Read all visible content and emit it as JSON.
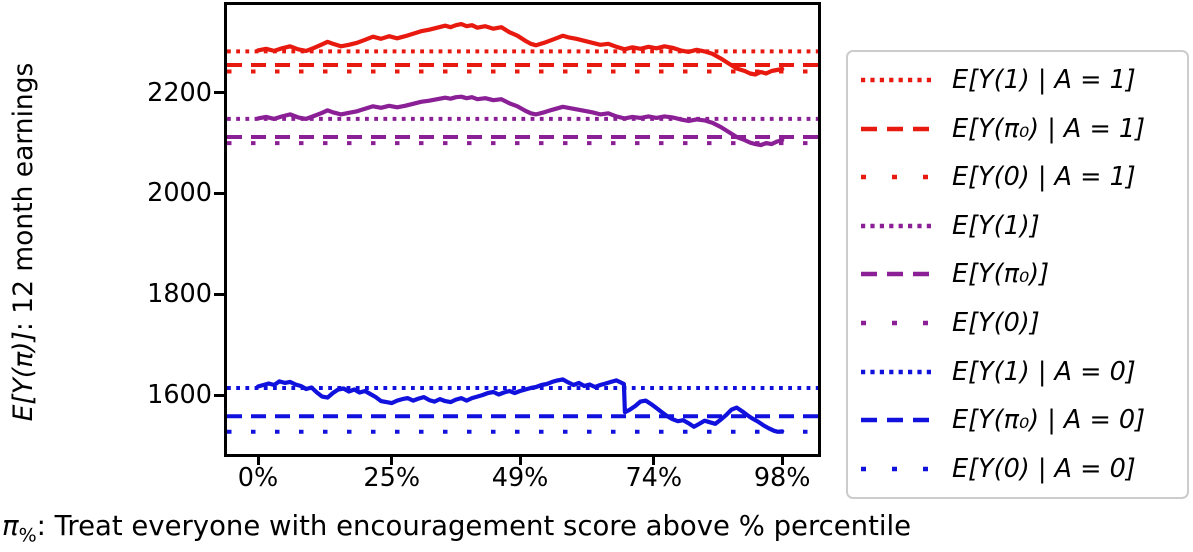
{
  "caption": {
    "pi": "π",
    "sub": "%",
    "rest": ": Treat everyone with encouragement score above % percentile"
  },
  "axis": {
    "ylabel_math": "E[Y(π)]",
    "ylabel_rest": ": 12 month earnings"
  },
  "colors": {
    "red": "#e8190f",
    "purple": "#8a1f96",
    "blue": "#1111dd",
    "axis": "#000000",
    "legend_border": "#cccccc"
  },
  "chart_data": {
    "type": "line",
    "title": "",
    "xlabel": "π%: Treat everyone with encouragement score above % percentile",
    "ylabel": "E[Y(π)]: 12 month earnings",
    "grid": false,
    "legend_position": "outside-right",
    "xlim": [
      -5.8,
      104.7
    ],
    "ylim": [
      1483,
      2374
    ],
    "xticks": {
      "pos": [
        0,
        25,
        49,
        74,
        98
      ],
      "labels": [
        "0%",
        "25%",
        "49%",
        "74%",
        "98%"
      ]
    },
    "yticks": {
      "pos": [
        2200,
        2000,
        1800,
        1600
      ],
      "labels": [
        "2200",
        "2000",
        "1800",
        "1600"
      ]
    },
    "hlines": [
      {
        "label": "E[Y(1) | A = 1]",
        "value": 2282,
        "color": "#e8190f",
        "style": "dotted"
      },
      {
        "label": "E[Y(π₀) | A = 1]",
        "value": 2255,
        "color": "#e8190f",
        "style": "dashed"
      },
      {
        "label": "E[Y(0) | A = 1]",
        "value": 2242,
        "color": "#e8190f",
        "style": "sparse"
      },
      {
        "label": "E[Y(1)]",
        "value": 2148,
        "color": "#8a1f96",
        "style": "dotted"
      },
      {
        "label": "E[Y(π₀)]",
        "value": 2112,
        "color": "#8a1f96",
        "style": "dashed"
      },
      {
        "label": "E[Y(0)]",
        "value": 2100,
        "color": "#8a1f96",
        "style": "sparse"
      },
      {
        "label": "E[Y(1) | A = 0]",
        "value": 1614,
        "color": "#1111dd",
        "style": "dotted"
      },
      {
        "label": "E[Y(π₀) | A = 0]",
        "value": 1558,
        "color": "#1111dd",
        "style": "dashed"
      },
      {
        "label": "E[Y(0) | A = 0]",
        "value": 1527,
        "color": "#1111dd",
        "style": "sparse"
      }
    ],
    "series": [
      {
        "name": "policy-value-curve-treated",
        "color": "#e8190f",
        "points": [
          [
            0,
            2284
          ],
          [
            1.5,
            2287
          ],
          [
            3,
            2283
          ],
          [
            4.5,
            2288
          ],
          [
            6,
            2292
          ],
          [
            7.5,
            2286
          ],
          [
            9,
            2283
          ],
          [
            10.5,
            2289
          ],
          [
            12,
            2296
          ],
          [
            13,
            2301
          ],
          [
            14,
            2297
          ],
          [
            15.5,
            2292
          ],
          [
            17,
            2295
          ],
          [
            18.5,
            2299
          ],
          [
            20,
            2305
          ],
          [
            21.5,
            2311
          ],
          [
            23,
            2307
          ],
          [
            24.5,
            2312
          ],
          [
            26,
            2308
          ],
          [
            27.5,
            2312
          ],
          [
            29,
            2317
          ],
          [
            30.5,
            2322
          ],
          [
            32,
            2325
          ],
          [
            33.5,
            2329
          ],
          [
            35,
            2333
          ],
          [
            36,
            2330
          ],
          [
            37,
            2334
          ],
          [
            38,
            2336
          ],
          [
            39,
            2332
          ],
          [
            40,
            2334
          ],
          [
            41,
            2329
          ],
          [
            42.5,
            2332
          ],
          [
            44,
            2327
          ],
          [
            45.5,
            2330
          ],
          [
            47,
            2320
          ],
          [
            48.5,
            2313
          ],
          [
            50,
            2303
          ],
          [
            51,
            2297
          ],
          [
            52,
            2294
          ],
          [
            53.5,
            2299
          ],
          [
            55,
            2305
          ],
          [
            56,
            2309
          ],
          [
            57,
            2313
          ],
          [
            58,
            2310
          ],
          [
            59.5,
            2307
          ],
          [
            61,
            2303
          ],
          [
            62.5,
            2299
          ],
          [
            64,
            2295
          ],
          [
            65.5,
            2297
          ],
          [
            67,
            2291
          ],
          [
            68.5,
            2286
          ],
          [
            70,
            2290
          ],
          [
            71.5,
            2287
          ],
          [
            73,
            2291
          ],
          [
            74.5,
            2288
          ],
          [
            76,
            2292
          ],
          [
            77.5,
            2289
          ],
          [
            79,
            2284
          ],
          [
            80.5,
            2281
          ],
          [
            82,
            2285
          ],
          [
            83.5,
            2282
          ],
          [
            85,
            2277
          ],
          [
            86.5,
            2268
          ],
          [
            88,
            2258
          ],
          [
            89.5,
            2248
          ],
          [
            91,
            2243
          ],
          [
            92,
            2238
          ],
          [
            93,
            2236
          ],
          [
            94,
            2241
          ],
          [
            95,
            2238
          ],
          [
            96,
            2243
          ],
          [
            97,
            2245
          ],
          [
            98,
            2247
          ]
        ]
      },
      {
        "name": "policy-value-curve-overall",
        "color": "#8a1f96",
        "points": [
          [
            0,
            2149
          ],
          [
            1.5,
            2152
          ],
          [
            3,
            2148
          ],
          [
            4.5,
            2153
          ],
          [
            6,
            2157
          ],
          [
            7.5,
            2151
          ],
          [
            9,
            2148
          ],
          [
            10.5,
            2154
          ],
          [
            12,
            2160
          ],
          [
            13,
            2165
          ],
          [
            14,
            2161
          ],
          [
            15.5,
            2157
          ],
          [
            17,
            2160
          ],
          [
            18.5,
            2163
          ],
          [
            20,
            2168
          ],
          [
            21.5,
            2173
          ],
          [
            23,
            2170
          ],
          [
            24.5,
            2174
          ],
          [
            26,
            2171
          ],
          [
            27.5,
            2174
          ],
          [
            29,
            2178
          ],
          [
            30.5,
            2182
          ],
          [
            32,
            2184
          ],
          [
            33.5,
            2187
          ],
          [
            35,
            2190
          ],
          [
            36,
            2188
          ],
          [
            37,
            2191
          ],
          [
            38,
            2192
          ],
          [
            39,
            2189
          ],
          [
            40,
            2191
          ],
          [
            41,
            2187
          ],
          [
            42.5,
            2189
          ],
          [
            44,
            2185
          ],
          [
            45.5,
            2187
          ],
          [
            47,
            2179
          ],
          [
            48.5,
            2173
          ],
          [
            50,
            2164
          ],
          [
            51,
            2159
          ],
          [
            52,
            2157
          ],
          [
            53.5,
            2161
          ],
          [
            55,
            2166
          ],
          [
            56,
            2169
          ],
          [
            57,
            2172
          ],
          [
            58,
            2170
          ],
          [
            59.5,
            2167
          ],
          [
            61,
            2164
          ],
          [
            62.5,
            2161
          ],
          [
            64,
            2157
          ],
          [
            65.5,
            2159
          ],
          [
            67,
            2153
          ],
          [
            68.5,
            2149
          ],
          [
            70,
            2152
          ],
          [
            71.5,
            2150
          ],
          [
            73,
            2153
          ],
          [
            74.5,
            2150
          ],
          [
            76,
            2153
          ],
          [
            77.5,
            2151
          ],
          [
            79,
            2147
          ],
          [
            80.5,
            2144
          ],
          [
            82,
            2147
          ],
          [
            83.5,
            2145
          ],
          [
            85,
            2140
          ],
          [
            86.5,
            2132
          ],
          [
            88,
            2122
          ],
          [
            89.5,
            2112
          ],
          [
            91,
            2106
          ],
          [
            92,
            2101
          ],
          [
            93,
            2098
          ],
          [
            94,
            2096
          ],
          [
            95,
            2100
          ],
          [
            96,
            2098
          ],
          [
            97,
            2103
          ],
          [
            98,
            2106
          ]
        ]
      },
      {
        "name": "policy-value-curve-control",
        "color": "#1111dd",
        "points": [
          [
            0,
            1617
          ],
          [
            1,
            1620
          ],
          [
            2,
            1623
          ],
          [
            3,
            1620
          ],
          [
            4,
            1627
          ],
          [
            5,
            1624
          ],
          [
            6,
            1626
          ],
          [
            7,
            1621
          ],
          [
            8,
            1618
          ],
          [
            9,
            1612
          ],
          [
            10,
            1615
          ],
          [
            11,
            1605
          ],
          [
            12,
            1597
          ],
          [
            13,
            1595
          ],
          [
            14,
            1604
          ],
          [
            15,
            1611
          ],
          [
            16,
            1613
          ],
          [
            17,
            1607
          ],
          [
            18,
            1611
          ],
          [
            19,
            1605
          ],
          [
            20,
            1608
          ],
          [
            21,
            1602
          ],
          [
            22,
            1596
          ],
          [
            23,
            1588
          ],
          [
            24,
            1586
          ],
          [
            25,
            1584
          ],
          [
            26,
            1589
          ],
          [
            27,
            1592
          ],
          [
            28,
            1594
          ],
          [
            29,
            1589
          ],
          [
            30,
            1593
          ],
          [
            31,
            1596
          ],
          [
            32,
            1590
          ],
          [
            33,
            1587
          ],
          [
            34,
            1592
          ],
          [
            35,
            1588
          ],
          [
            36,
            1586
          ],
          [
            37,
            1591
          ],
          [
            38,
            1594
          ],
          [
            39,
            1589
          ],
          [
            40,
            1594
          ],
          [
            41,
            1597
          ],
          [
            42,
            1600
          ],
          [
            43,
            1604
          ],
          [
            44,
            1606
          ],
          [
            45,
            1601
          ],
          [
            46,
            1605
          ],
          [
            47,
            1608
          ],
          [
            48,
            1604
          ],
          [
            49,
            1608
          ],
          [
            50,
            1611
          ],
          [
            51,
            1614
          ],
          [
            52,
            1616
          ],
          [
            53,
            1620
          ],
          [
            54,
            1622
          ],
          [
            55,
            1626
          ],
          [
            56,
            1629
          ],
          [
            57,
            1631
          ],
          [
            58,
            1625
          ],
          [
            59,
            1620
          ],
          [
            60,
            1624
          ],
          [
            61,
            1618
          ],
          [
            62,
            1621
          ],
          [
            63,
            1616
          ],
          [
            64,
            1620
          ],
          [
            65,
            1623
          ],
          [
            66,
            1626
          ],
          [
            67,
            1629
          ],
          [
            68,
            1624
          ],
          [
            68.4,
            1622
          ],
          [
            68.6,
            1566
          ],
          [
            69.5,
            1571
          ],
          [
            70.5,
            1578
          ],
          [
            71.5,
            1587
          ],
          [
            72.5,
            1589
          ],
          [
            73.5,
            1582
          ],
          [
            74.5,
            1574
          ],
          [
            75.5,
            1566
          ],
          [
            76.5,
            1558
          ],
          [
            77.5,
            1552
          ],
          [
            78.5,
            1548
          ],
          [
            79.5,
            1550
          ],
          [
            80.5,
            1544
          ],
          [
            81.5,
            1537
          ],
          [
            82.5,
            1543
          ],
          [
            83.5,
            1549
          ],
          [
            84.5,
            1546
          ],
          [
            85.5,
            1543
          ],
          [
            86.5,
            1551
          ],
          [
            87.5,
            1560
          ],
          [
            88.5,
            1571
          ],
          [
            89.5,
            1575
          ],
          [
            90.5,
            1568
          ],
          [
            91.5,
            1560
          ],
          [
            92.5,
            1553
          ],
          [
            93.5,
            1547
          ],
          [
            94.5,
            1540
          ],
          [
            95.5,
            1534
          ],
          [
            96.5,
            1529
          ],
          [
            97.2,
            1527
          ],
          [
            98,
            1528
          ]
        ]
      }
    ]
  }
}
